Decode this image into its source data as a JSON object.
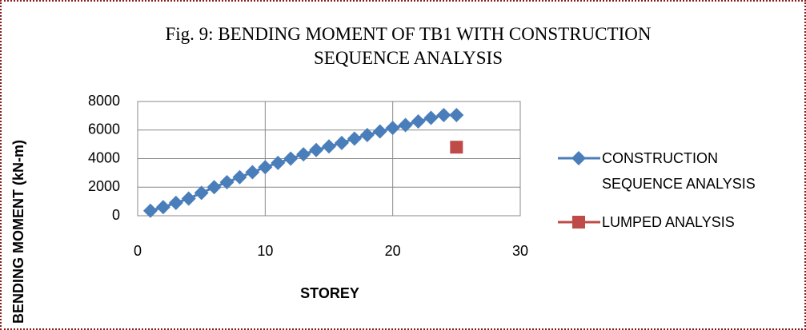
{
  "chart_data": {
    "type": "line",
    "title": "Fig. 9: BENDING MOMENT OF TB1 WITH CONSTRUCTION SEQUENCE ANALYSIS",
    "x_label": "STOREY",
    "y_label": "BENDING MOMENT (kN-m)",
    "xlim": [
      0,
      30
    ],
    "xticks": [
      0,
      10,
      20,
      30
    ],
    "ylim": [
      0,
      8000
    ],
    "yticks": [
      0,
      2000,
      4000,
      6000,
      8000
    ],
    "grid": true,
    "legend": "right",
    "series": [
      {
        "name": "CONSTRUCTION SEQUENCE ANALYSIS",
        "color": "#4a7ebb",
        "marker": "diamond",
        "x": [
          1,
          2,
          3,
          4,
          5,
          6,
          7,
          8,
          9,
          10,
          11,
          12,
          13,
          14,
          15,
          16,
          17,
          18,
          19,
          20,
          21,
          22,
          23,
          24,
          25
        ],
        "values": [
          350,
          600,
          900,
          1200,
          1600,
          2000,
          2350,
          2700,
          3050,
          3400,
          3700,
          4000,
          4300,
          4600,
          4850,
          5100,
          5400,
          5650,
          5900,
          6150,
          6350,
          6600,
          6850,
          7050,
          7050
        ]
      },
      {
        "name": "LUMPED ANALYSIS",
        "color": "#be4b48",
        "marker": "square",
        "x": [
          25
        ],
        "values": [
          4800
        ]
      }
    ]
  }
}
